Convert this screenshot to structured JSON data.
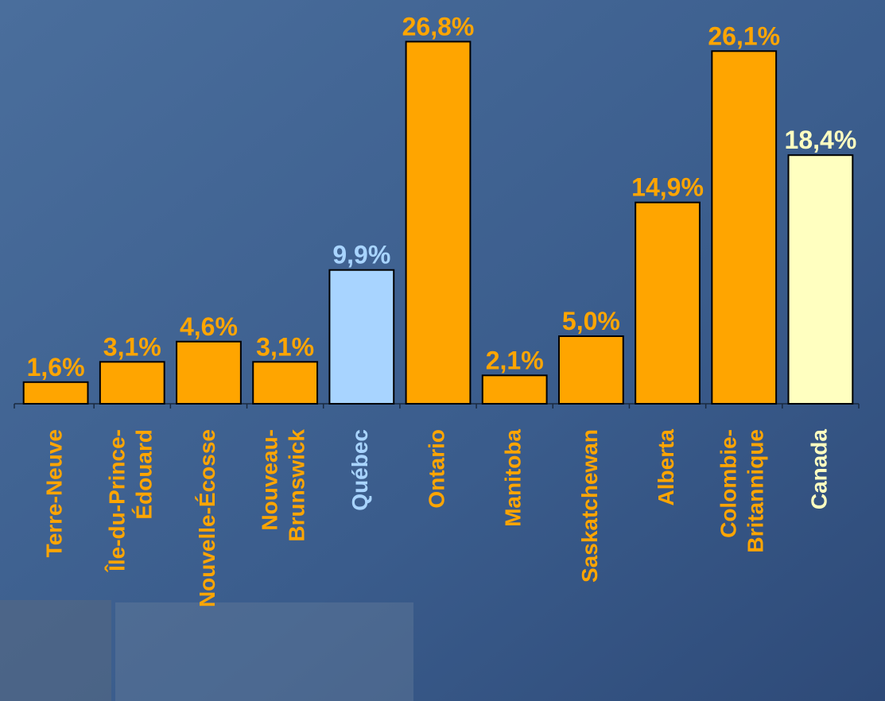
{
  "chart_data": {
    "type": "bar",
    "categories": [
      "Terre-Neuve",
      "Île-du-Prince-\nÉdouard",
      "Nouvelle-Écosse",
      "Nouveau-\nBrunswick",
      "Québec",
      "Ontario",
      "Manitoba",
      "Saskatchewan",
      "Alberta",
      "Colombie-\nBritannique",
      "Canada"
    ],
    "values": [
      1.6,
      3.1,
      4.6,
      3.1,
      9.9,
      26.8,
      2.1,
      5.0,
      14.9,
      26.1,
      18.4
    ],
    "value_labels": [
      "1,6%",
      "3,1%",
      "4,6%",
      "3,1%",
      "9,9%",
      "26,8%",
      "2,1%",
      "5,0%",
      "14,9%",
      "26,1%",
      "18,4%"
    ],
    "colors": [
      "#ffa500",
      "#ffa500",
      "#ffa500",
      "#ffa500",
      "#a8d4ff",
      "#ffa500",
      "#ffa500",
      "#ffa500",
      "#ffa500",
      "#ffa500",
      "#ffffc0"
    ],
    "ylim": [
      0,
      28
    ]
  }
}
